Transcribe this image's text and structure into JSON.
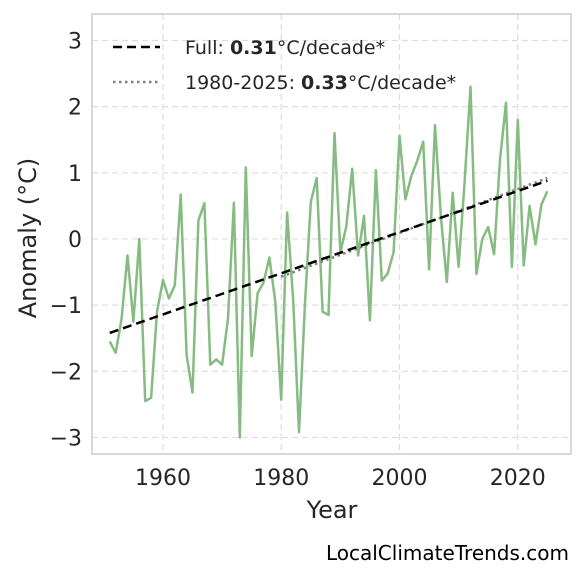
{
  "chart_data": {
    "type": "line",
    "title": "",
    "xlabel": "Year",
    "ylabel": "Anomaly (°C)",
    "xlim": [
      1948,
      2029
    ],
    "ylim": [
      -3.25,
      3.4
    ],
    "xticks": [
      1960,
      1980,
      2000,
      2020
    ],
    "xtick_labels": [
      "1960",
      "1980",
      "2000",
      "2020"
    ],
    "yticks": [
      -3,
      -2,
      -1,
      0,
      1,
      2,
      3
    ],
    "ytick_labels": [
      "−3",
      "−2",
      "−1",
      "0",
      "1",
      "2",
      "3"
    ],
    "grid": true,
    "legend_position": "top-left",
    "colors": {
      "series": "#86bb82",
      "trend_full": "#000000",
      "trend_recent": "#808080",
      "grid": "#dddddd",
      "frame": "#cccccc"
    },
    "series": [
      {
        "x": [
          1951,
          1952,
          1953,
          1954,
          1955,
          1956,
          1957,
          1958,
          1959,
          1960,
          1961,
          1962,
          1963,
          1964,
          1965,
          1966,
          1967,
          1968,
          1969,
          1970,
          1971,
          1972,
          1973,
          1974,
          1975,
          1976,
          1977,
          1978,
          1979,
          1980,
          1981,
          1982,
          1983,
          1984,
          1985,
          1986,
          1987,
          1988,
          1989,
          1990,
          1991,
          1992,
          1993,
          1994,
          1995,
          1996,
          1997,
          1998,
          1999,
          2000,
          2001,
          2002,
          2003,
          2004,
          2005,
          2006,
          2007,
          2008,
          2009,
          2010,
          2011,
          2012,
          2013,
          2014,
          2015,
          2016,
          2017,
          2018,
          2019,
          2020,
          2021,
          2022,
          2023,
          2024,
          2025
        ],
        "y": [
          -1.55,
          -1.72,
          -1.2,
          -0.25,
          -1.25,
          0.0,
          -2.45,
          -2.4,
          -1.1,
          -0.62,
          -0.9,
          -0.7,
          0.67,
          -1.75,
          -2.32,
          0.28,
          0.54,
          -1.9,
          -1.82,
          -1.9,
          -1.2,
          0.55,
          -3.0,
          1.08,
          -1.77,
          -0.82,
          -0.66,
          -0.28,
          -0.95,
          -2.43,
          0.4,
          -0.9,
          -2.92,
          -1.0,
          0.56,
          0.92,
          -1.1,
          -1.15,
          1.6,
          -0.2,
          0.19,
          1.06,
          -0.25,
          0.35,
          -1.23,
          1.04,
          -0.63,
          -0.52,
          -0.2,
          1.56,
          0.6,
          0.95,
          1.18,
          1.47,
          -0.46,
          1.72,
          0.34,
          -0.65,
          0.7,
          -0.42,
          0.86,
          2.3,
          -0.53,
          0.0,
          0.18,
          -0.23,
          1.2,
          2.06,
          -0.42,
          1.8,
          -0.4,
          0.5,
          -0.08,
          0.52,
          0.72
        ]
      }
    ],
    "trend_lines": [
      {
        "x": [
          1951,
          2025
        ],
        "y": [
          -1.42,
          0.88
        ]
      },
      {
        "x": [
          1980,
          2025
        ],
        "y": [
          -0.57,
          0.92
        ]
      }
    ],
    "legend": [
      {
        "prefix": "Full: ",
        "bold": "0.31",
        "suffix": "°C/decade*"
      },
      {
        "prefix": "1980-2025: ",
        "bold": "0.33",
        "suffix": "°C/decade*"
      }
    ]
  },
  "watermark": "LocalClimateTrends.com"
}
